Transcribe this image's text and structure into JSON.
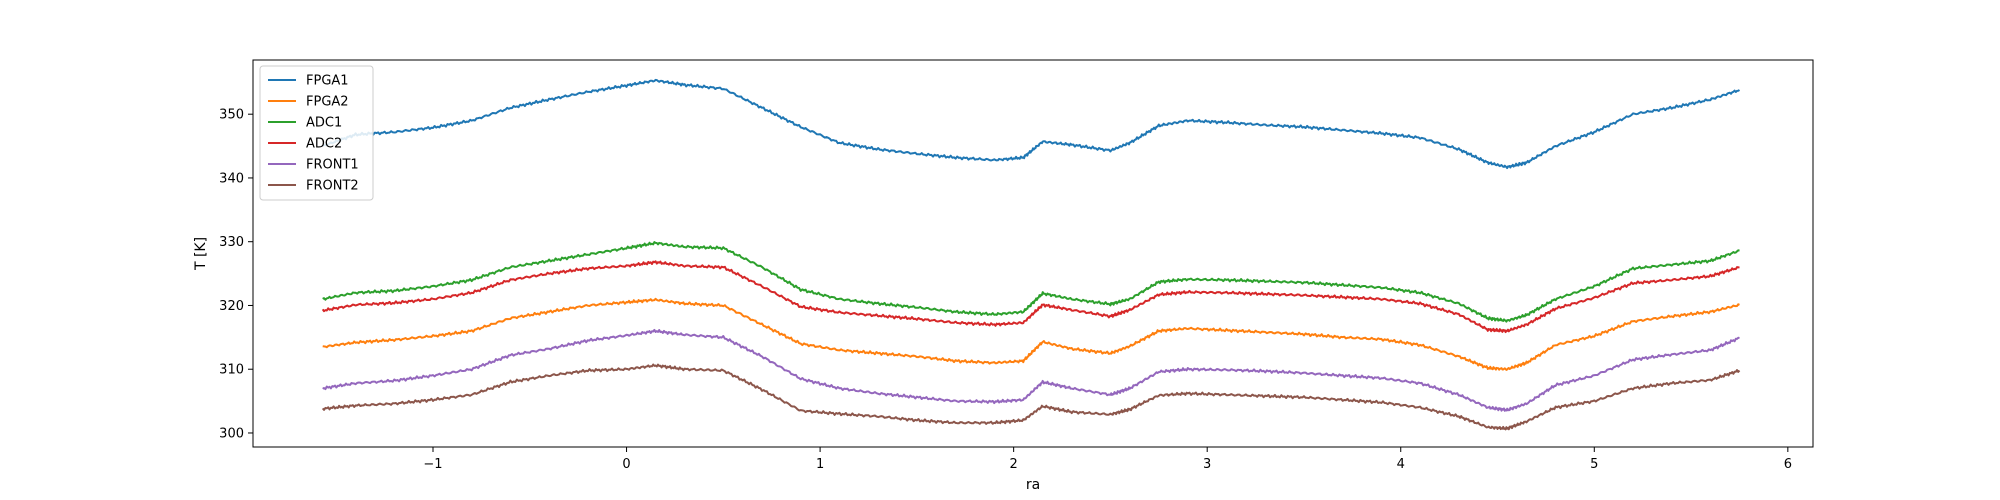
{
  "chart_data": {
    "type": "line",
    "title": "",
    "xlabel": "ra",
    "ylabel": "T [K]",
    "xlim": [
      -1.93,
      6.13
    ],
    "ylim": [
      297.8,
      358.5
    ],
    "xticks": [
      -1,
      0,
      1,
      2,
      3,
      4,
      5,
      6
    ],
    "xtick_labels": [
      "−1",
      "0",
      "1",
      "2",
      "3",
      "4",
      "5",
      "6"
    ],
    "yticks": [
      300,
      310,
      320,
      330,
      340,
      350
    ],
    "ytick_labels": [
      "300",
      "310",
      "320",
      "330",
      "340",
      "350"
    ],
    "grid": false,
    "legend_position": "top-left",
    "x": [
      -1.57,
      -1.4,
      -1.2,
      -1.0,
      -0.8,
      -0.6,
      -0.4,
      -0.2,
      0.0,
      0.15,
      0.3,
      0.5,
      0.7,
      0.9,
      1.1,
      1.3,
      1.5,
      1.7,
      1.9,
      2.05,
      2.15,
      2.3,
      2.5,
      2.6,
      2.75,
      2.9,
      3.1,
      3.3,
      3.5,
      3.7,
      3.9,
      4.1,
      4.3,
      4.45,
      4.55,
      4.65,
      4.8,
      5.0,
      5.2,
      5.4,
      5.6,
      5.75
    ],
    "series": [
      {
        "name": "FPGA1",
        "color": "#1f77b4",
        "values": [
          345.0,
          346.8,
          347.2,
          347.9,
          349.0,
          351.0,
          352.3,
          353.5,
          354.5,
          355.3,
          354.6,
          354.0,
          351.0,
          348.0,
          345.5,
          344.5,
          343.8,
          343.2,
          342.8,
          343.2,
          345.7,
          345.2,
          344.3,
          345.5,
          348.2,
          349.0,
          348.7,
          348.3,
          348.0,
          347.5,
          347.0,
          346.3,
          344.5,
          342.4,
          341.7,
          342.4,
          345.0,
          347.2,
          350.0,
          351.0,
          352.3,
          353.8
        ]
      },
      {
        "name": "FPGA2",
        "color": "#ff7f0e",
        "values": [
          313.5,
          314.2,
          314.6,
          315.2,
          316.0,
          318.0,
          319.0,
          320.0,
          320.5,
          320.9,
          320.3,
          320.0,
          317.0,
          314.0,
          313.0,
          312.5,
          312.0,
          311.3,
          311.0,
          311.3,
          314.3,
          313.2,
          312.5,
          313.6,
          316.0,
          316.4,
          316.1,
          315.8,
          315.5,
          315.0,
          314.7,
          313.8,
          312.0,
          310.2,
          310.0,
          311.0,
          313.8,
          315.2,
          317.5,
          318.3,
          319.0,
          320.1
        ]
      },
      {
        "name": "ADC1",
        "color": "#2ca02c",
        "values": [
          321.0,
          322.0,
          322.3,
          323.0,
          324.0,
          326.0,
          327.0,
          328.0,
          329.0,
          329.8,
          329.2,
          329.0,
          326.0,
          322.5,
          321.0,
          320.3,
          319.7,
          319.0,
          318.6,
          319.0,
          321.9,
          321.0,
          320.2,
          321.0,
          323.7,
          324.1,
          324.0,
          323.8,
          323.6,
          323.2,
          322.8,
          322.0,
          320.3,
          318.0,
          317.6,
          318.5,
          321.0,
          323.0,
          325.8,
          326.4,
          327.0,
          328.6
        ]
      },
      {
        "name": "ADC2",
        "color": "#d62728",
        "values": [
          319.2,
          320.1,
          320.4,
          321.0,
          322.0,
          324.0,
          325.0,
          325.8,
          326.2,
          326.8,
          326.2,
          326.0,
          323.0,
          319.8,
          318.9,
          318.4,
          317.9,
          317.3,
          317.0,
          317.3,
          320.1,
          319.3,
          318.3,
          319.3,
          321.7,
          322.1,
          322.0,
          321.8,
          321.6,
          321.3,
          321.0,
          320.3,
          318.6,
          316.2,
          316.0,
          317.0,
          319.5,
          321.2,
          323.5,
          324.0,
          324.6,
          326.0
        ]
      },
      {
        "name": "FRONT1",
        "color": "#9467bd",
        "values": [
          307.0,
          307.8,
          308.2,
          309.0,
          310.0,
          312.2,
          313.2,
          314.5,
          315.3,
          316.0,
          315.4,
          315.0,
          312.0,
          308.5,
          307.0,
          306.2,
          305.6,
          305.0,
          304.9,
          305.2,
          308.0,
          307.0,
          306.0,
          307.0,
          309.6,
          310.0,
          309.9,
          309.7,
          309.4,
          309.0,
          308.6,
          307.8,
          306.0,
          304.0,
          303.6,
          304.6,
          307.5,
          309.0,
          311.5,
          312.3,
          313.0,
          314.9
        ]
      },
      {
        "name": "FRONT2",
        "color": "#8c564b",
        "values": [
          303.8,
          304.3,
          304.6,
          305.2,
          306.0,
          308.0,
          309.0,
          309.8,
          310.0,
          310.6,
          310.0,
          309.8,
          306.8,
          303.5,
          303.0,
          302.6,
          302.0,
          301.6,
          301.6,
          302.0,
          304.2,
          303.3,
          302.9,
          303.7,
          305.9,
          306.2,
          306.0,
          305.8,
          305.6,
          305.2,
          304.8,
          304.0,
          302.6,
          300.9,
          300.7,
          301.8,
          304.0,
          305.0,
          307.0,
          307.8,
          308.3,
          309.8
        ]
      }
    ]
  }
}
